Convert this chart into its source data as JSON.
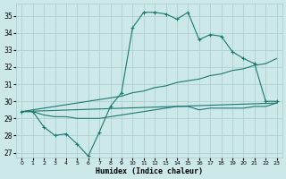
{
  "xlabel": "Humidex (Indice chaleur)",
  "xlim": [
    -0.5,
    23.5
  ],
  "ylim": [
    26.7,
    35.7
  ],
  "yticks": [
    27,
    28,
    29,
    30,
    31,
    32,
    33,
    34,
    35
  ],
  "xticks": [
    0,
    1,
    2,
    3,
    4,
    5,
    6,
    7,
    8,
    9,
    10,
    11,
    12,
    13,
    14,
    15,
    16,
    17,
    18,
    19,
    20,
    21,
    22,
    23
  ],
  "bg_color": "#cce8e8",
  "grid_color": "#aacccc",
  "line_color": "#1a7a6e",
  "line1_x": [
    0,
    1,
    2,
    3,
    4,
    5,
    6,
    7,
    8,
    9,
    10,
    11,
    12,
    13,
    14,
    15,
    16,
    17,
    18,
    19,
    20,
    21,
    22,
    23
  ],
  "line1_y": [
    29.4,
    29.4,
    28.5,
    28.0,
    28.1,
    27.5,
    26.8,
    28.2,
    29.7,
    30.5,
    34.3,
    35.2,
    35.2,
    35.1,
    34.8,
    35.2,
    33.6,
    33.9,
    33.8,
    32.9,
    32.5,
    32.2,
    30.0,
    30.0
  ],
  "line2_x": [
    0,
    1,
    2,
    3,
    4,
    5,
    6,
    7,
    8,
    9,
    10,
    11,
    12,
    13,
    14,
    15,
    16,
    17,
    18,
    19,
    20,
    21,
    22,
    23
  ],
  "line2_y": [
    29.4,
    29.5,
    29.6,
    29.7,
    29.8,
    29.9,
    30.0,
    30.1,
    30.2,
    30.3,
    30.5,
    30.6,
    30.8,
    30.9,
    31.1,
    31.2,
    31.3,
    31.5,
    31.6,
    31.8,
    31.9,
    32.1,
    32.2,
    32.5
  ],
  "line3_x": [
    0,
    1,
    2,
    3,
    4,
    5,
    6,
    7,
    8,
    9,
    10,
    11,
    12,
    13,
    14,
    15,
    16,
    17,
    18,
    19,
    20,
    21,
    22,
    23
  ],
  "line3_y": [
    29.4,
    29.4,
    29.2,
    29.1,
    29.1,
    29.0,
    29.0,
    29.0,
    29.1,
    29.2,
    29.3,
    29.4,
    29.5,
    29.6,
    29.7,
    29.7,
    29.5,
    29.6,
    29.6,
    29.6,
    29.6,
    29.7,
    29.7,
    29.9
  ],
  "line4_x": [
    0,
    23
  ],
  "line4_y": [
    29.4,
    29.9
  ]
}
